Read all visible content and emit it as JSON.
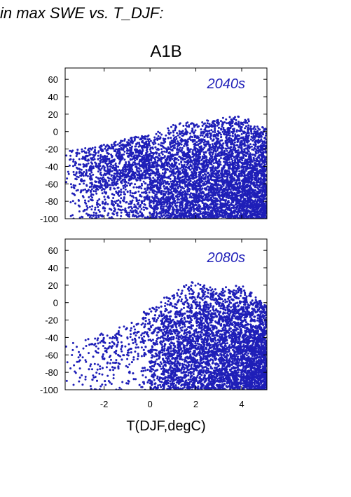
{
  "heading": "in max SWE vs. T_DJF:",
  "colors": {
    "points": "#1f1fb8",
    "panel_label": "#1f1fb8"
  },
  "chart_data": {
    "type": "scatter",
    "title": "A1B",
    "xlabel": "T(DJF,degC)",
    "ylabel": "",
    "xlim": [
      -3.7,
      5.1
    ],
    "ylim": [
      -100,
      73
    ],
    "x_ticks": [
      -2,
      0,
      2,
      4
    ],
    "y_ticks": [
      -100,
      -80,
      -60,
      -40,
      -20,
      0,
      20,
      40,
      60
    ],
    "y_tick_labels": [
      "-100",
      "-80",
      "-60",
      "-40",
      "-20",
      "0",
      "20",
      "40",
      "60"
    ],
    "x_tick_labels": [
      "-2",
      "0",
      "2",
      "4"
    ],
    "grid": false,
    "legend": "none",
    "panels": [
      {
        "label": "2040s",
        "note": "dense point cloud; upper envelope approx. y=-25 near x=-3.5, rising to y=0 at x~0.5, y~15 near x=2-4; points fill down to -100",
        "envelope_x": [
          -3.7,
          -3,
          -2,
          -1,
          0,
          1,
          2,
          3,
          4,
          5
        ],
        "envelope_y_upper": [
          -22,
          -20,
          -15,
          -8,
          -3,
          8,
          15,
          16,
          18,
          5
        ],
        "points_approx_count": 6000
      },
      {
        "label": "2080s",
        "note": "point cloud starts near x=-3.5 at y~-50; upper envelope rises to ~25 near x=2-3; dense core x=1.5-5, y=-100 to -20",
        "envelope_x": [
          -3.7,
          -3,
          -2,
          -1,
          0,
          1,
          2,
          3,
          4,
          5
        ],
        "envelope_y_upper": [
          -50,
          -40,
          -35,
          -25,
          -5,
          15,
          25,
          18,
          20,
          0
        ],
        "points_approx_count": 6000
      }
    ]
  }
}
